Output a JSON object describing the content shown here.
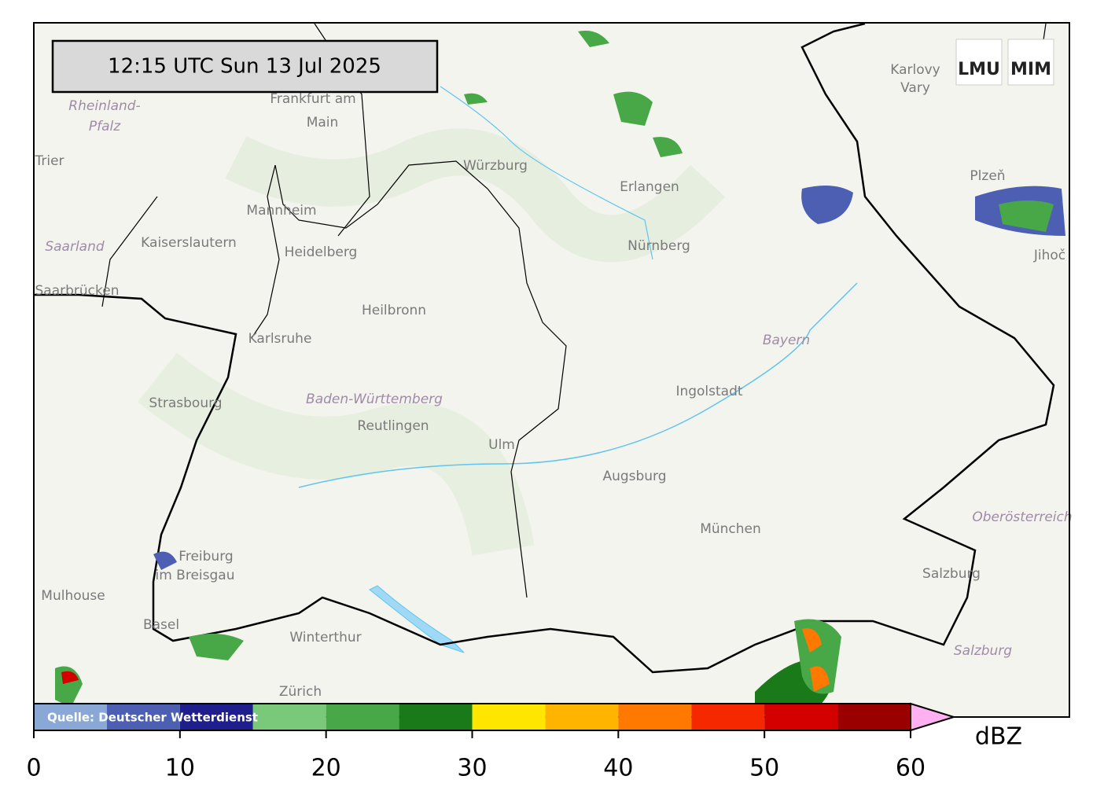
{
  "timestamp": "12:15 UTC  Sun 13 Jul 2025",
  "logo": [
    "LMU",
    "MIM"
  ],
  "places": [
    "Frankfurt am",
    "Main",
    "Rheinland-",
    "Pfalz",
    "Trier",
    "Mannheim",
    "Kaiserslautern",
    "Saarland",
    "Heidelberg",
    "Saarbrücken",
    "Heilbronn",
    "Karlsruhe",
    "Würzburg",
    "Erlangen",
    "Nürnberg",
    "Karlovy",
    "Vary",
    "Plzeň",
    "Jihoč",
    "Bayern",
    "Ingolstadt",
    "Strasbourg",
    "Baden-Württemberg",
    "Reutlingen",
    "Ulm",
    "Augsburg",
    "München",
    "Oberösterreich",
    "Freiburg",
    "im Breisgau",
    "Mulhouse",
    "Basel",
    "Winterthur",
    "Zürich",
    "Salzburg",
    "Salzburg"
  ],
  "source": "Quelle: Deutscher Wetterdienst",
  "colorbar": {
    "label": "dBZ",
    "bounds": [
      0,
      5,
      10,
      15,
      20,
      25,
      30,
      35,
      40,
      45,
      50,
      55,
      60
    ],
    "colors": [
      "#8aa8d6",
      "#4c5fb2",
      "#1e1e8c",
      "#7ac87a",
      "#48a848",
      "#1a7a1a",
      "#ffe600",
      "#ffb400",
      "#ff7800",
      "#f52800",
      "#d40000",
      "#9a0000"
    ],
    "over_color": "#ffb0f0",
    "ticks": [
      0,
      10,
      20,
      30,
      40,
      50,
      60
    ]
  }
}
